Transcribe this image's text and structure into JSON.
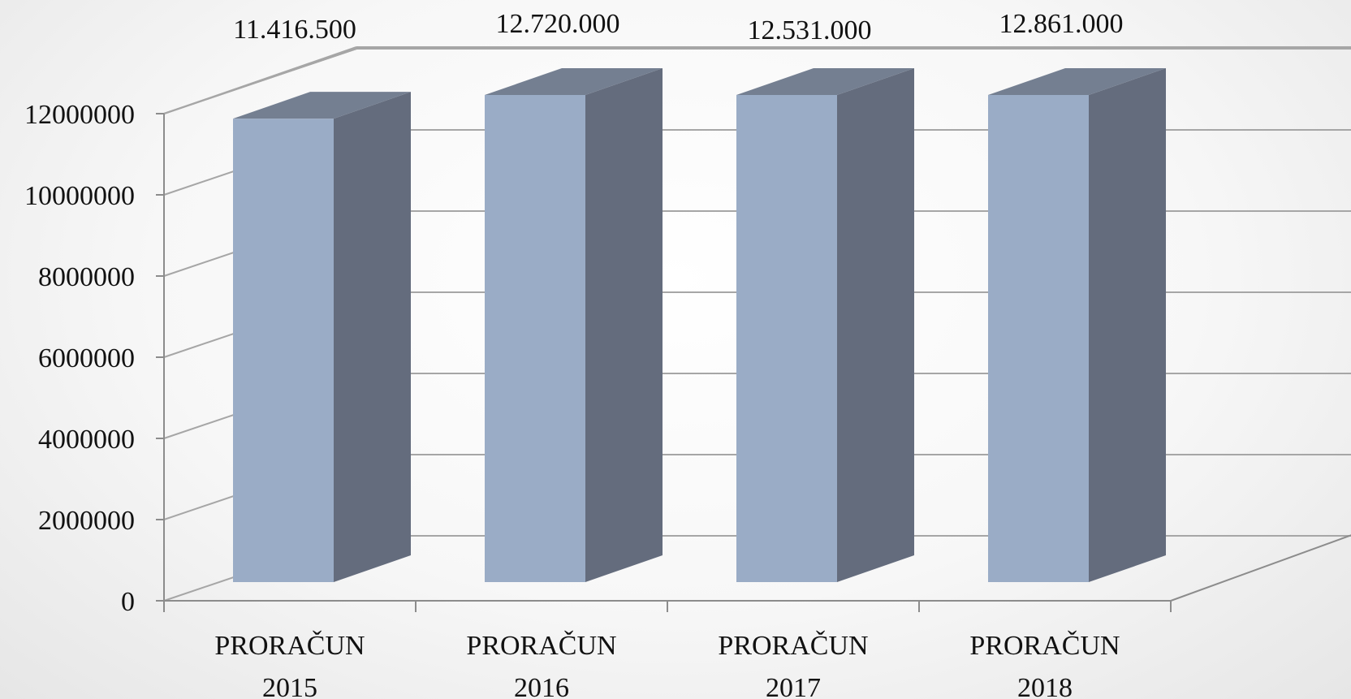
{
  "chart_data": {
    "type": "bar",
    "categories": [
      [
        "PRORAČUN",
        "2015"
      ],
      [
        "PRORAČUN",
        "2016"
      ],
      [
        "PRORAČUN",
        "2017"
      ],
      [
        "PRORAČUN",
        "2018"
      ]
    ],
    "values": [
      11416500,
      12720000,
      12531000,
      12861000
    ],
    "data_labels": [
      "11.416.500",
      "12.720.000",
      "12.531.000",
      "12.861.000"
    ],
    "yticks": [
      "0",
      "2000000",
      "4000000",
      "6000000",
      "8000000",
      "10000000",
      "12000000"
    ],
    "ylim": [
      0,
      12000000
    ],
    "grid": true,
    "three_d": true,
    "colors": {
      "front": "#9aacc6",
      "side": "#646c7d",
      "top": "#747f91",
      "grid": "#a6a6a6"
    }
  }
}
